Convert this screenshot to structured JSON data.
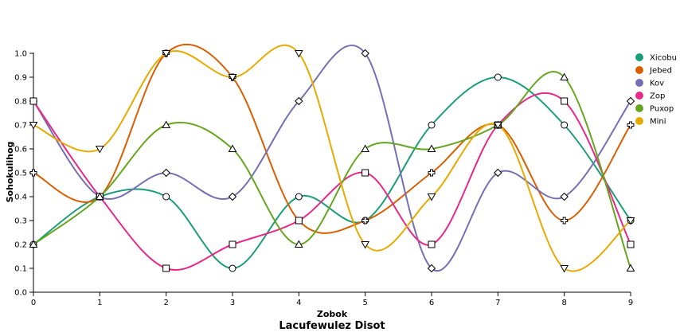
{
  "chart_data": {
    "type": "line",
    "title": "Lacufewulez Disot",
    "xlabel": "Zobok",
    "ylabel": "Sohokulihog",
    "x": [
      0,
      1,
      2,
      3,
      4,
      5,
      6,
      7,
      8,
      9
    ],
    "xlim": [
      0,
      9
    ],
    "ylim": [
      0,
      1.0
    ],
    "x_ticks": [
      "0",
      "1",
      "2",
      "3",
      "4",
      "5",
      "6",
      "7",
      "8",
      "9"
    ],
    "y_ticks": [
      "0.0",
      "0.1",
      "0.2",
      "0.3",
      "0.4",
      "0.5",
      "0.6",
      "0.7",
      "0.8",
      "0.9",
      "1.0"
    ],
    "grid": false,
    "legend_position": "right",
    "series": [
      {
        "name": "Xicobu",
        "color": "#1b9e77",
        "marker": "circle",
        "values": [
          0.2,
          0.4,
          0.4,
          0.1,
          0.4,
          0.3,
          0.7,
          0.9,
          0.7,
          0.3
        ]
      },
      {
        "name": "Jebed",
        "color": "#d95f02",
        "marker": "cross",
        "values": [
          0.5,
          0.4,
          1.0,
          0.9,
          0.3,
          0.3,
          0.5,
          0.7,
          0.3,
          0.7
        ]
      },
      {
        "name": "Kov",
        "color": "#7570b3",
        "marker": "diamond",
        "values": [
          0.8,
          0.4,
          0.5,
          0.4,
          0.8,
          1.0,
          0.1,
          0.5,
          0.4,
          0.8
        ]
      },
      {
        "name": "Zop",
        "color": "#e7298a",
        "marker": "square",
        "values": [
          0.8,
          0.4,
          0.1,
          0.2,
          0.3,
          0.5,
          0.2,
          0.7,
          0.8,
          0.2
        ]
      },
      {
        "name": "Puxop",
        "color": "#66a61e",
        "marker": "triangle-up",
        "values": [
          0.2,
          0.4,
          0.7,
          0.6,
          0.2,
          0.6,
          0.6,
          0.7,
          0.9,
          0.1
        ]
      },
      {
        "name": "Mini",
        "color": "#e6ab02",
        "marker": "triangle-down",
        "values": [
          0.7,
          0.6,
          1.0,
          0.9,
          1.0,
          0.2,
          0.4,
          0.7,
          0.1,
          0.3
        ]
      }
    ]
  }
}
